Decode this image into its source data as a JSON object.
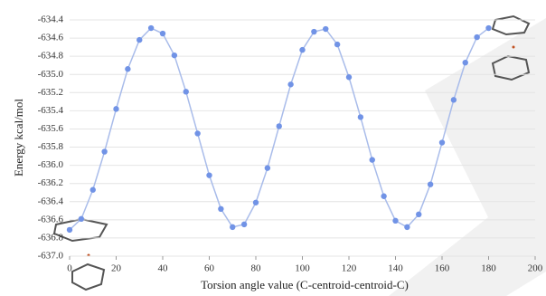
{
  "chart_data": {
    "type": "line",
    "x_label": "Torsion angle value (C-centroid-centroid-C)",
    "y_label": "Energy kcal/mol",
    "x": [
      0,
      5,
      10,
      15,
      20,
      25,
      30,
      35,
      40,
      45,
      50,
      55,
      60,
      65,
      70,
      75,
      80,
      85,
      90,
      95,
      100,
      105,
      110,
      115,
      120,
      125,
      130,
      135,
      140,
      145,
      150,
      155,
      160,
      165,
      170,
      175,
      180
    ],
    "series": [
      {
        "color": "#7193e6",
        "values": [
          -636.71,
          -636.59,
          -636.27,
          -635.85,
          -635.38,
          -634.94,
          -634.62,
          -634.49,
          -634.55,
          -634.79,
          -635.19,
          -635.65,
          -636.11,
          -636.48,
          -636.68,
          -636.65,
          -636.41,
          -636.03,
          -635.57,
          -635.11,
          -634.73,
          -634.53,
          -634.5,
          -634.67,
          -635.03,
          -635.47,
          -635.94,
          -636.34,
          -636.61,
          -636.68,
          -636.54,
          -636.21,
          -635.75,
          -635.28,
          -634.87,
          -634.59,
          -634.49
        ]
      }
    ],
    "xlim": [
      0,
      200
    ],
    "xticks": [
      0,
      20,
      40,
      60,
      80,
      100,
      120,
      140,
      160,
      180,
      200
    ],
    "ylim": [
      -637.0,
      -634.4
    ],
    "yticks": [
      {
        "value": -637.0,
        "label": "-637.0"
      },
      -636.8,
      -636.6,
      -636.4,
      -636.2,
      {
        "value": -636.0,
        "label": "-636.0"
      },
      -635.8,
      -635.6,
      -635.4,
      -635.2,
      {
        "value": -635.0,
        "label": "-635.0"
      },
      -634.8,
      -634.6,
      -634.4
    ],
    "grid": true
  }
}
